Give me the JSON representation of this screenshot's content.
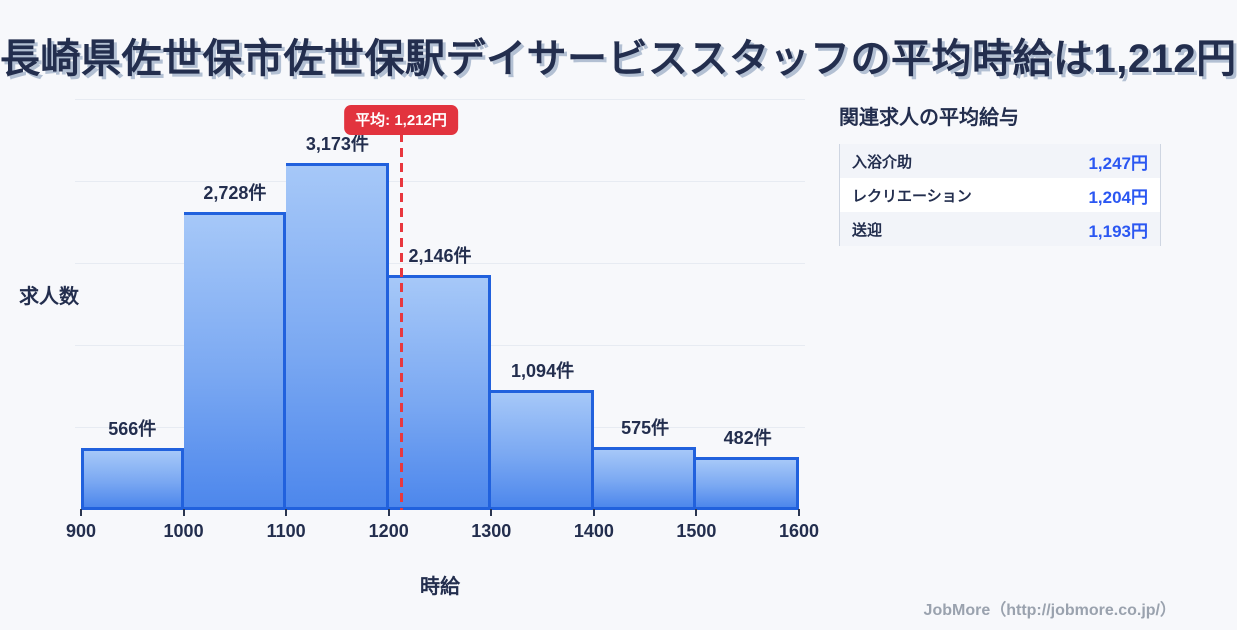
{
  "title": "長崎県佐世保市佐世保駅デイサービススタッフの平均時給は1,212円",
  "chart_data": {
    "type": "bar",
    "subtype": "histogram",
    "title": "",
    "xlabel": "時給",
    "ylabel": "求人数",
    "bin_edges": [
      900,
      1000,
      1100,
      1200,
      1300,
      1400,
      1500,
      1600
    ],
    "x_tick_labels": [
      "900",
      "1000",
      "1100",
      "1200",
      "1300",
      "1400",
      "1500",
      "1600"
    ],
    "values": [
      566,
      2728,
      3173,
      2146,
      1094,
      575,
      482
    ],
    "bar_labels": [
      "566件",
      "2,728件",
      "3,173件",
      "2,146件",
      "1,094件",
      "575件",
      "482件"
    ],
    "average": 1212,
    "average_label": "平均: 1,212円",
    "xlim": [
      900,
      1600
    ],
    "ylim": [
      0,
      3800
    ],
    "grid": "horizontal-faint",
    "legend": "none"
  },
  "related": {
    "heading": "関連求人の平均給与",
    "rows": [
      {
        "label": "入浴介助",
        "value": "1,247円"
      },
      {
        "label": "レクリエーション",
        "value": "1,204円"
      },
      {
        "label": "送迎",
        "value": "1,193円"
      }
    ]
  },
  "footer": {
    "credit": "JobMore（http://jobmore.co.jp/）"
  },
  "colors": {
    "background": "#f7f8fb",
    "title_navy": "#232e4e",
    "bar_border": "#2161dd",
    "bar_fill_top": "#a6c8f8",
    "bar_fill_bottom": "#4d87ec",
    "accent_red": "#e2333e",
    "value_blue": "#2b57f2",
    "gridline": "#e7ebf2",
    "footer_gray": "#9aa2ae"
  }
}
